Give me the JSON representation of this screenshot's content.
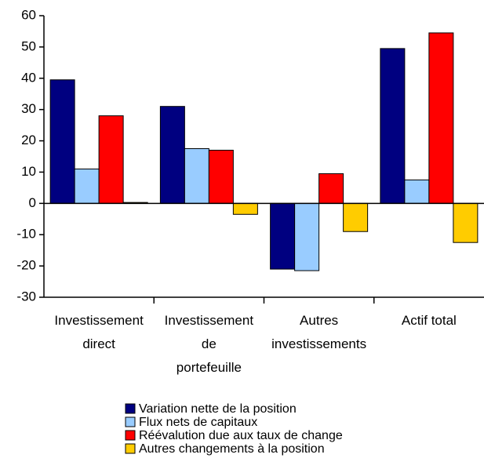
{
  "chart_data": {
    "type": "bar",
    "categories": [
      "Investissement\ndirect",
      "Investissement\nde\nportefeuille",
      "Autres\ninvestissements",
      "Actif total"
    ],
    "series": [
      {
        "name": "Variation nette de la position",
        "color": "#000080",
        "values": [
          39.5,
          31,
          -21,
          49.5
        ]
      },
      {
        "name": "Flux nets de capitaux",
        "color": "#99ccff",
        "values": [
          11,
          17.5,
          -21.5,
          7.5
        ]
      },
      {
        "name": "Réévalution due aux taux de change",
        "color": "#ff0000",
        "values": [
          28,
          17,
          9.5,
          54.5
        ]
      },
      {
        "name": "Autres changements à la position",
        "color": "#ffcc00",
        "values": [
          0.3,
          -3.5,
          -9,
          -12.5
        ]
      }
    ],
    "ylim": [
      -30,
      60
    ],
    "yticks": [
      -30,
      -20,
      -10,
      0,
      10,
      20,
      30,
      40,
      50,
      60
    ]
  }
}
